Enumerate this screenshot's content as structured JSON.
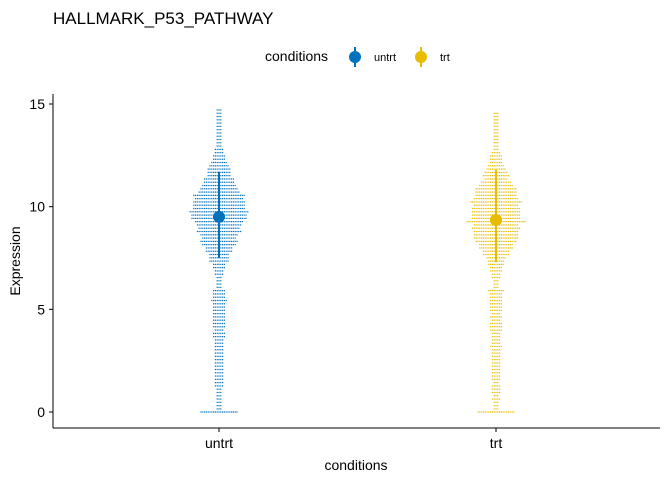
{
  "chart_data": {
    "type": "dotplot",
    "title": "HALLMARK_P53_PATHWAY",
    "xlabel": "conditions",
    "ylabel": "Expression",
    "ylim": [
      -0.8,
      15.6
    ],
    "yticks": [
      0,
      5,
      10,
      15
    ],
    "categories": [
      "untrt",
      "trt"
    ],
    "legend": {
      "title": "conditions",
      "position": "top"
    },
    "series": [
      {
        "name": "untrt",
        "color": "#0072BD",
        "summary_mean": 9.5,
        "summary_low": 7.5,
        "summary_high": 11.7,
        "distribution": {
          "min": 0,
          "max": 14.8,
          "peak": 9.7
        }
      },
      {
        "name": "trt",
        "color": "#E8BC00",
        "summary_mean": 9.35,
        "summary_low": 7.3,
        "summary_high": 11.8,
        "distribution": {
          "min": 0,
          "max": 14.7,
          "peak": 9.6
        }
      }
    ]
  }
}
